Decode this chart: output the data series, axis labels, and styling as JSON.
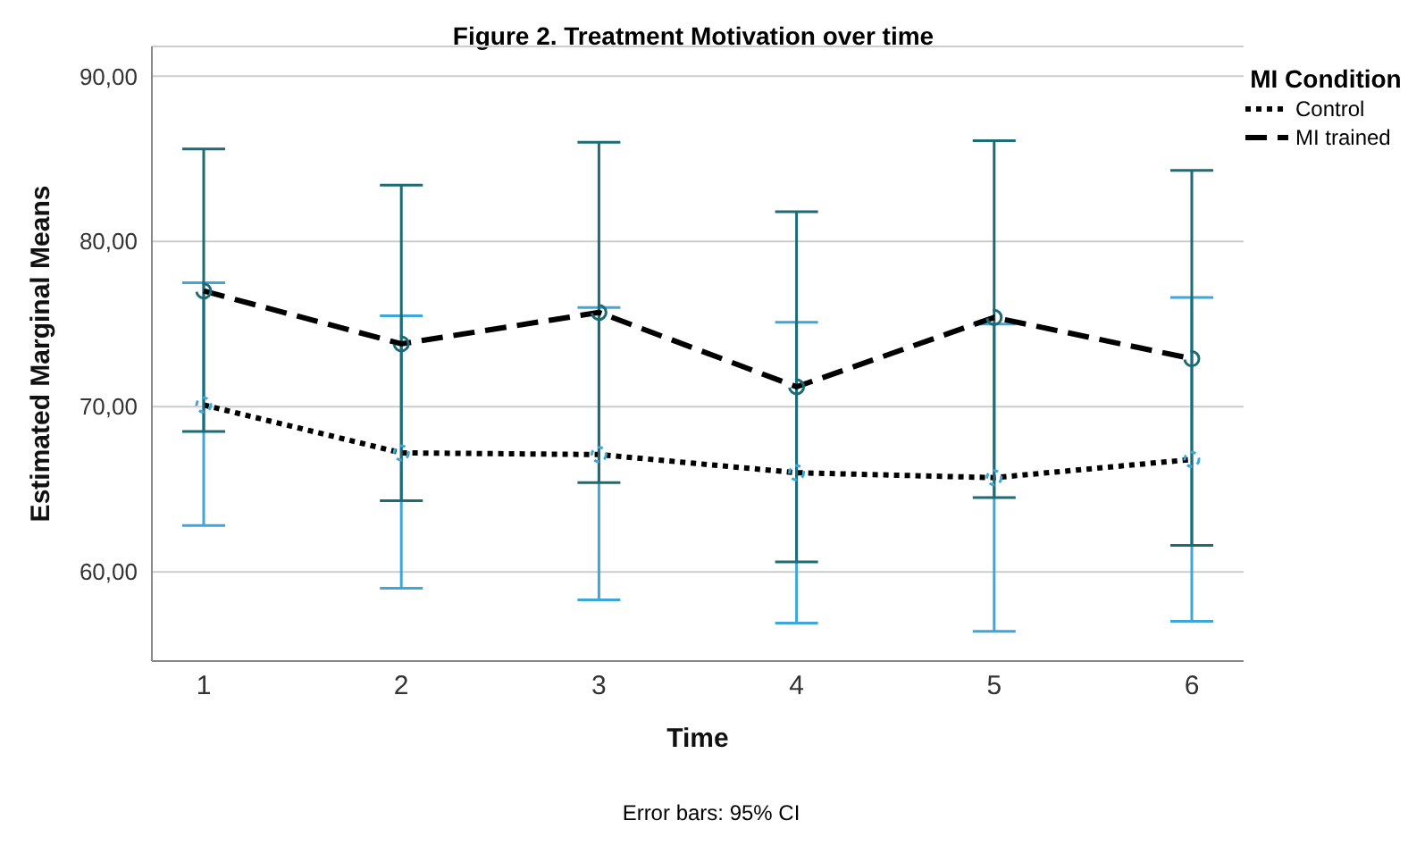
{
  "chart_data": {
    "type": "line",
    "title": "Figure 2. Treatment Motivation over time",
    "xlabel": "Time",
    "ylabel": "Estimated Marginal Means",
    "legend_title": "MI Condition",
    "annotations": [
      "Error bars: 95% CI"
    ],
    "categories": [
      "1",
      "2",
      "3",
      "4",
      "5",
      "6"
    ],
    "series": [
      {
        "name": "Control",
        "color": "#000000",
        "line_style": "dotted",
        "values": [
          70.1,
          67.2,
          67.1,
          66.0,
          65.7,
          66.8
        ],
        "errors": [
          [
            62.8,
            77.5
          ],
          [
            59.0,
            75.5
          ],
          [
            58.3,
            76.0
          ],
          [
            56.9,
            75.1
          ],
          [
            56.4,
            75.0
          ],
          [
            57.0,
            76.6
          ]
        ]
      },
      {
        "name": "MI trained",
        "color": "#000000",
        "line_style": "dashed",
        "values": [
          77.0,
          73.8,
          75.7,
          71.2,
          75.4,
          72.9
        ],
        "errors": [
          [
            68.5,
            85.6
          ],
          [
            64.3,
            83.4
          ],
          [
            65.4,
            86.0
          ],
          [
            60.6,
            81.8
          ],
          [
            64.5,
            86.1
          ],
          [
            61.6,
            84.3
          ]
        ]
      }
    ],
    "ylim": [
      54.6,
      91.8
    ],
    "yticks": [
      {
        "value": 60,
        "label": "60,00"
      },
      {
        "value": 70,
        "label": "70,00"
      },
      {
        "value": 80,
        "label": "80,00"
      },
      {
        "value": 90,
        "label": "90,00"
      }
    ],
    "grid": "y",
    "legend": "top right",
    "marker": "circle"
  }
}
